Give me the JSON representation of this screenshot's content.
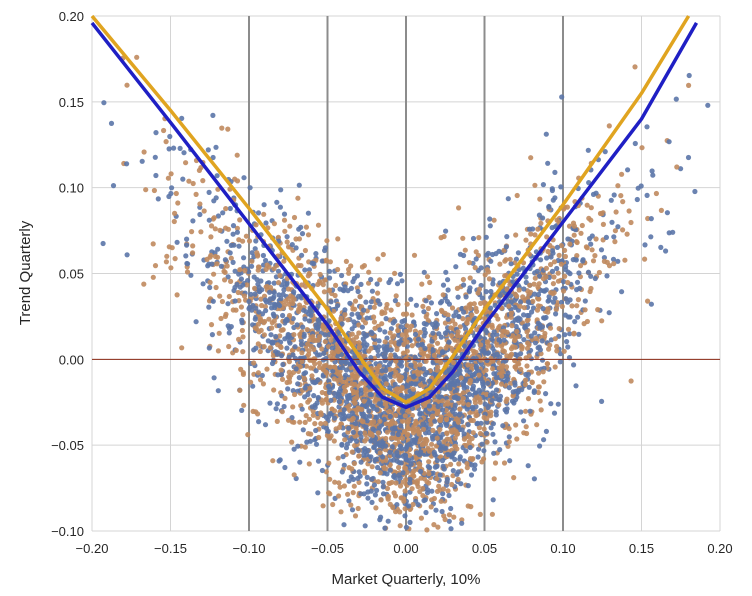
{
  "chart_data": {
    "type": "scatter",
    "title": "",
    "xlabel": "Market Quarterly, 10%",
    "ylabel": "Trend Quarterly",
    "xlim": [
      -0.2,
      0.2
    ],
    "ylim": [
      -0.1,
      0.2
    ],
    "x_ticks": [
      "−0.20",
      "−0.15",
      "−0.10",
      "−0.05",
      "0.00",
      "0.05",
      "0.10",
      "0.15",
      "0.20"
    ],
    "y_ticks": [
      "−0.10",
      "−0.05",
      "0.00",
      "0.05",
      "0.10",
      "0.15",
      "0.20"
    ],
    "grid": true,
    "legend": "none",
    "highlighted_vertical_lines_x": [
      -0.1,
      -0.05,
      0.0,
      0.05,
      0.1
    ],
    "horizontal_reference_y": 0.0,
    "scatter_series": [
      {
        "color": "#5b75a8",
        "approx_point_count": 2200
      },
      {
        "color": "#c08a5e",
        "approx_point_count": 2200
      }
    ],
    "cloud_model": "trend ≈ sqrt(x² + 0.028²) − 0.06 + noise",
    "fit_lines": [
      {
        "color": "#1f1fc4",
        "points": [
          [
            -0.2,
            0.196
          ],
          [
            -0.15,
            0.138
          ],
          [
            -0.1,
            0.079
          ],
          [
            -0.05,
            0.02
          ],
          [
            -0.03,
            -0.007
          ],
          [
            -0.015,
            -0.022
          ],
          [
            0.0,
            -0.028
          ],
          [
            0.015,
            -0.022
          ],
          [
            0.03,
            -0.007
          ],
          [
            0.05,
            0.02
          ],
          [
            0.1,
            0.08
          ],
          [
            0.15,
            0.14
          ],
          [
            0.185,
            0.196
          ]
        ]
      },
      {
        "color": "#e0a420",
        "points": [
          [
            -0.2,
            0.2
          ],
          [
            -0.15,
            0.145
          ],
          [
            -0.1,
            0.088
          ],
          [
            -0.05,
            0.029
          ],
          [
            -0.03,
            0.002
          ],
          [
            -0.015,
            -0.017
          ],
          [
            0.0,
            -0.025
          ],
          [
            0.015,
            -0.017
          ],
          [
            0.03,
            0.002
          ],
          [
            0.05,
            0.029
          ],
          [
            0.1,
            0.09
          ],
          [
            0.15,
            0.155
          ],
          [
            0.18,
            0.2
          ]
        ]
      }
    ]
  }
}
